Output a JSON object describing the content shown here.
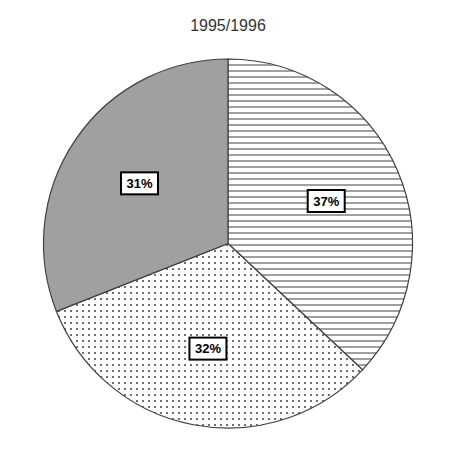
{
  "chart_data": {
    "type": "pie",
    "title": "1995/1996",
    "values": [
      37,
      32,
      31
    ],
    "value_labels": [
      "37%",
      "32%",
      "31%"
    ],
    "data_labels": true,
    "colors": [
      "white",
      "white",
      "#a0a0a0"
    ]
  }
}
